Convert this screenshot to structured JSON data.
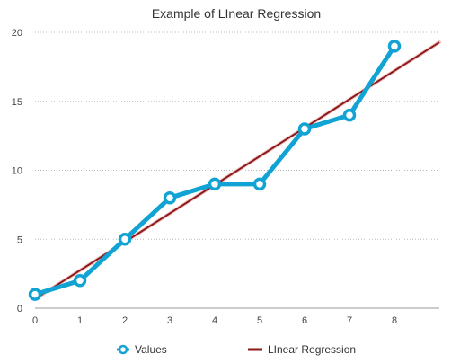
{
  "chart_data": {
    "type": "line",
    "title": "Example of LInear Regression",
    "xlabel": "",
    "ylabel": "",
    "x": [
      0,
      1,
      2,
      3,
      4,
      5,
      6,
      7,
      8
    ],
    "xlim": [
      0,
      9
    ],
    "ylim": [
      0,
      20
    ],
    "x_ticks": [
      "0",
      "1",
      "2",
      "3",
      "4",
      "5",
      "6",
      "7",
      "8"
    ],
    "y_ticks": [
      "0",
      "5",
      "10",
      "15",
      "20"
    ],
    "grid": "horizontal",
    "legend": "bottom",
    "series": [
      {
        "name": "Values",
        "style": "line-markers",
        "color": "#10a3d4",
        "values": [
          1,
          2,
          5,
          8,
          9,
          9,
          13,
          14,
          19
        ]
      },
      {
        "name": "LInear Regression",
        "style": "line",
        "color": "#8b1a1a",
        "x": [
          0,
          9
        ],
        "values": [
          0.67,
          19.28
        ]
      }
    ]
  }
}
